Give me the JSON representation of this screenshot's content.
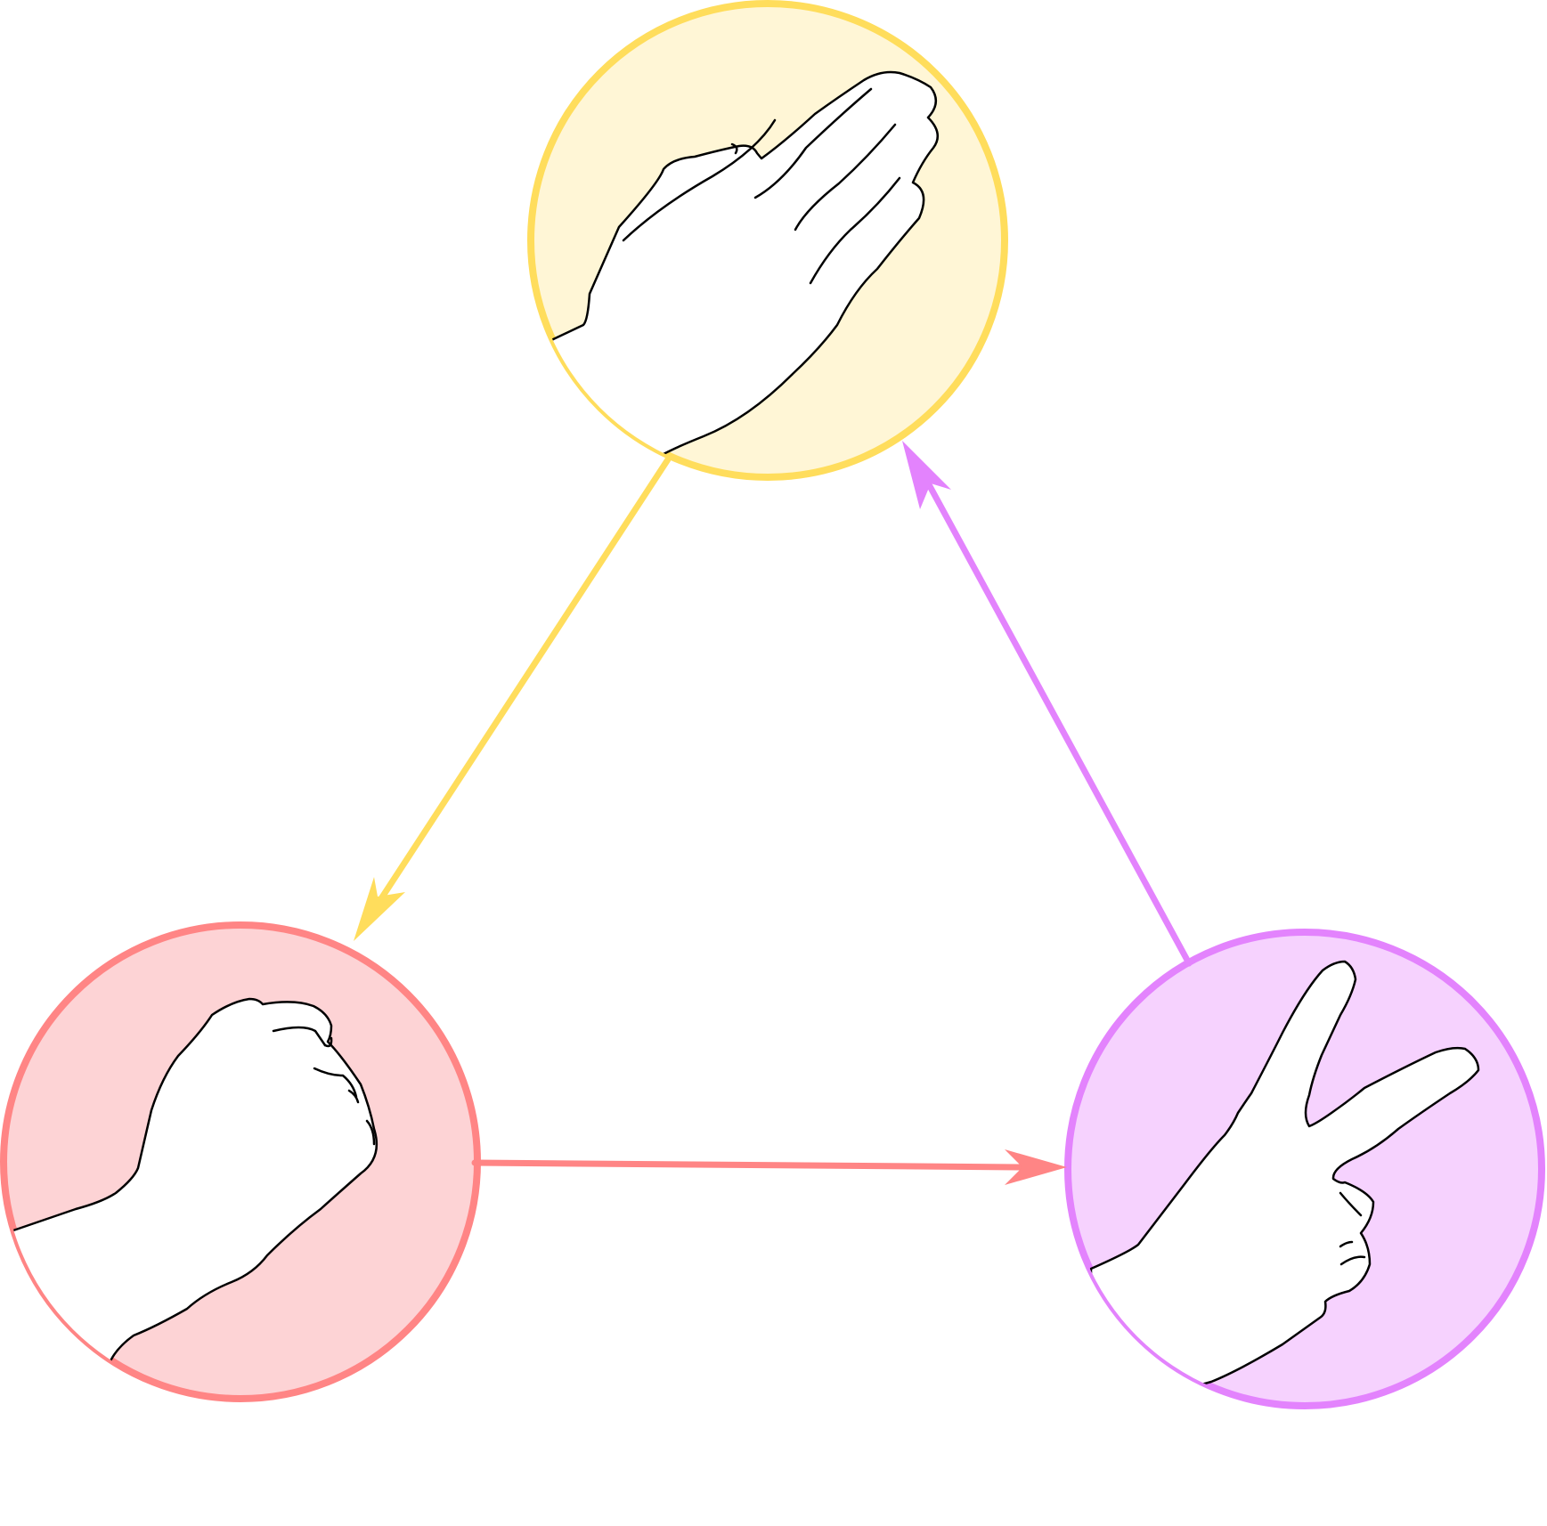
{
  "diagram": {
    "type": "cycle",
    "nodes": [
      {
        "id": "paper",
        "icon": "open-hand-icon",
        "fill": "#FFF6D6",
        "stroke": "#FFDD5C"
      },
      {
        "id": "rock",
        "icon": "fist-icon",
        "fill": "#FDD3D5",
        "stroke": "#FF8585"
      },
      {
        "id": "scissors",
        "icon": "peace-sign-hand-icon",
        "fill": "#F6D2FE",
        "stroke": "#E383FD"
      }
    ],
    "edges": [
      {
        "from": "paper",
        "to": "rock",
        "color": "#FFDD5C"
      },
      {
        "from": "rock",
        "to": "scissors",
        "color": "#FF8585"
      },
      {
        "from": "scissors",
        "to": "paper",
        "color": "#E383FD"
      }
    ]
  }
}
